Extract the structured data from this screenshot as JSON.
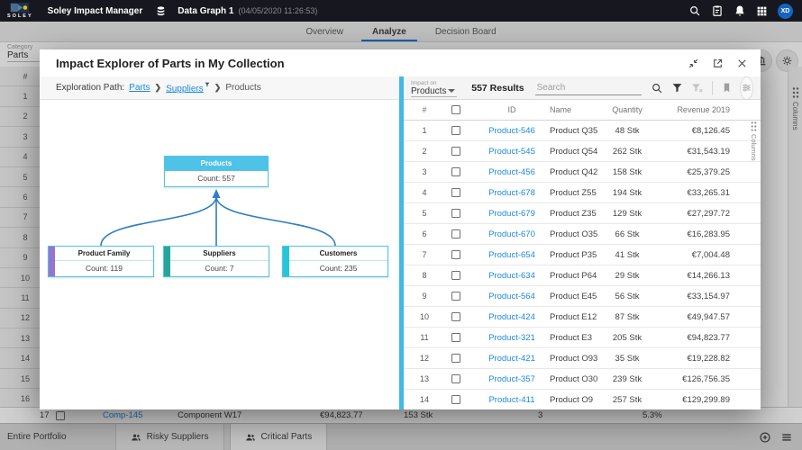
{
  "topbar": {
    "logo_text": "SOLEY",
    "app_title": "Soley Impact Manager",
    "graph_name": "Data Graph 1",
    "graph_timestamp": "(04/05/2020 11:26:53)",
    "avatar_initials": "XD"
  },
  "tabs": [
    {
      "label": "Overview",
      "active": false
    },
    {
      "label": "Analyze",
      "active": true
    },
    {
      "label": "Decision Board",
      "active": false
    }
  ],
  "background": {
    "category_label": "Category",
    "category_value": "Parts",
    "row_numbers": [
      "#",
      "1",
      "2",
      "3",
      "4",
      "5",
      "6",
      "7",
      "8",
      "9",
      "10",
      "11",
      "12",
      "13",
      "14",
      "15",
      "16"
    ],
    "columns_label": "Columns",
    "row17": {
      "num": "17",
      "id": "Comp-145",
      "name": "Component W17",
      "revenue": "€94,823.77",
      "quantity": "153 Stk",
      "count": "3",
      "percent": "5.3%"
    }
  },
  "bottombar": {
    "tab_entire": "Entire Portfolio",
    "tab_risky": "Risky Suppliers",
    "tab_critical": "Critical Parts"
  },
  "modal": {
    "title": "Impact Explorer of Parts in My Collection",
    "exploration": {
      "label": "Exploration Path:",
      "step1": "Parts",
      "step2": "Suppliers",
      "step3": "Products"
    },
    "diagram": {
      "root": {
        "label": "Products",
        "count": "Count: 557",
        "color": "#4fc3e7"
      },
      "children": [
        {
          "label": "Product Family",
          "count": "Count: 119",
          "accent": "#9575cd"
        },
        {
          "label": "Suppliers",
          "count": "Count: 7",
          "accent": "#26a69a"
        },
        {
          "label": "Customers",
          "count": "Count: 235",
          "accent": "#26c6da"
        }
      ]
    },
    "panel": {
      "impact_on_label": "Impact on",
      "impact_on_value": "Products",
      "results": "557 Results",
      "search_placeholder": "Search",
      "columns_label": "Columns"
    },
    "table": {
      "headers": {
        "num": "#",
        "id": "ID",
        "name": "Name",
        "qty": "Quantity",
        "rev": "Revenue 2019"
      },
      "rows": [
        {
          "num": "1",
          "id": "Product-546",
          "name": "Product Q35",
          "qty": "48 Stk",
          "rev": "€8,126.45"
        },
        {
          "num": "2",
          "id": "Product-545",
          "name": "Product Q54",
          "qty": "262 Stk",
          "rev": "€31,543.19"
        },
        {
          "num": "3",
          "id": "Product-456",
          "name": "Product Q42",
          "qty": "158 Stk",
          "rev": "€25,379.25"
        },
        {
          "num": "4",
          "id": "Product-678",
          "name": "Product Z55",
          "qty": "194 Stk",
          "rev": "€33,265.31"
        },
        {
          "num": "5",
          "id": "Product-679",
          "name": "Product Z35",
          "qty": "129 Stk",
          "rev": "€27,297.72"
        },
        {
          "num": "6",
          "id": "Product-670",
          "name": "Product O35",
          "qty": "66 Stk",
          "rev": "€16,283.95"
        },
        {
          "num": "7",
          "id": "Product-654",
          "name": "Product P35",
          "qty": "41 Stk",
          "rev": "€7,004.48"
        },
        {
          "num": "8",
          "id": "Product-634",
          "name": "Product P64",
          "qty": "29 Stk",
          "rev": "€14,266.13"
        },
        {
          "num": "9",
          "id": "Product-564",
          "name": "Product E45",
          "qty": "56 Stk",
          "rev": "€33,154.97"
        },
        {
          "num": "10",
          "id": "Product-424",
          "name": "Product E12",
          "qty": "87 Stk",
          "rev": "€49,947.57"
        },
        {
          "num": "11",
          "id": "Product-321",
          "name": "Product E3",
          "qty": "205 Stk",
          "rev": "€94,823.77"
        },
        {
          "num": "12",
          "id": "Product-421",
          "name": "Product O93",
          "qty": "35 Stk",
          "rev": "€19,228.82"
        },
        {
          "num": "13",
          "id": "Product-357",
          "name": "Product O30",
          "qty": "239 Stk",
          "rev": "€126,756.35"
        },
        {
          "num": "14",
          "id": "Product-411",
          "name": "Product O9",
          "qty": "257 Stk",
          "rev": "€129,299.89"
        }
      ]
    }
  }
}
